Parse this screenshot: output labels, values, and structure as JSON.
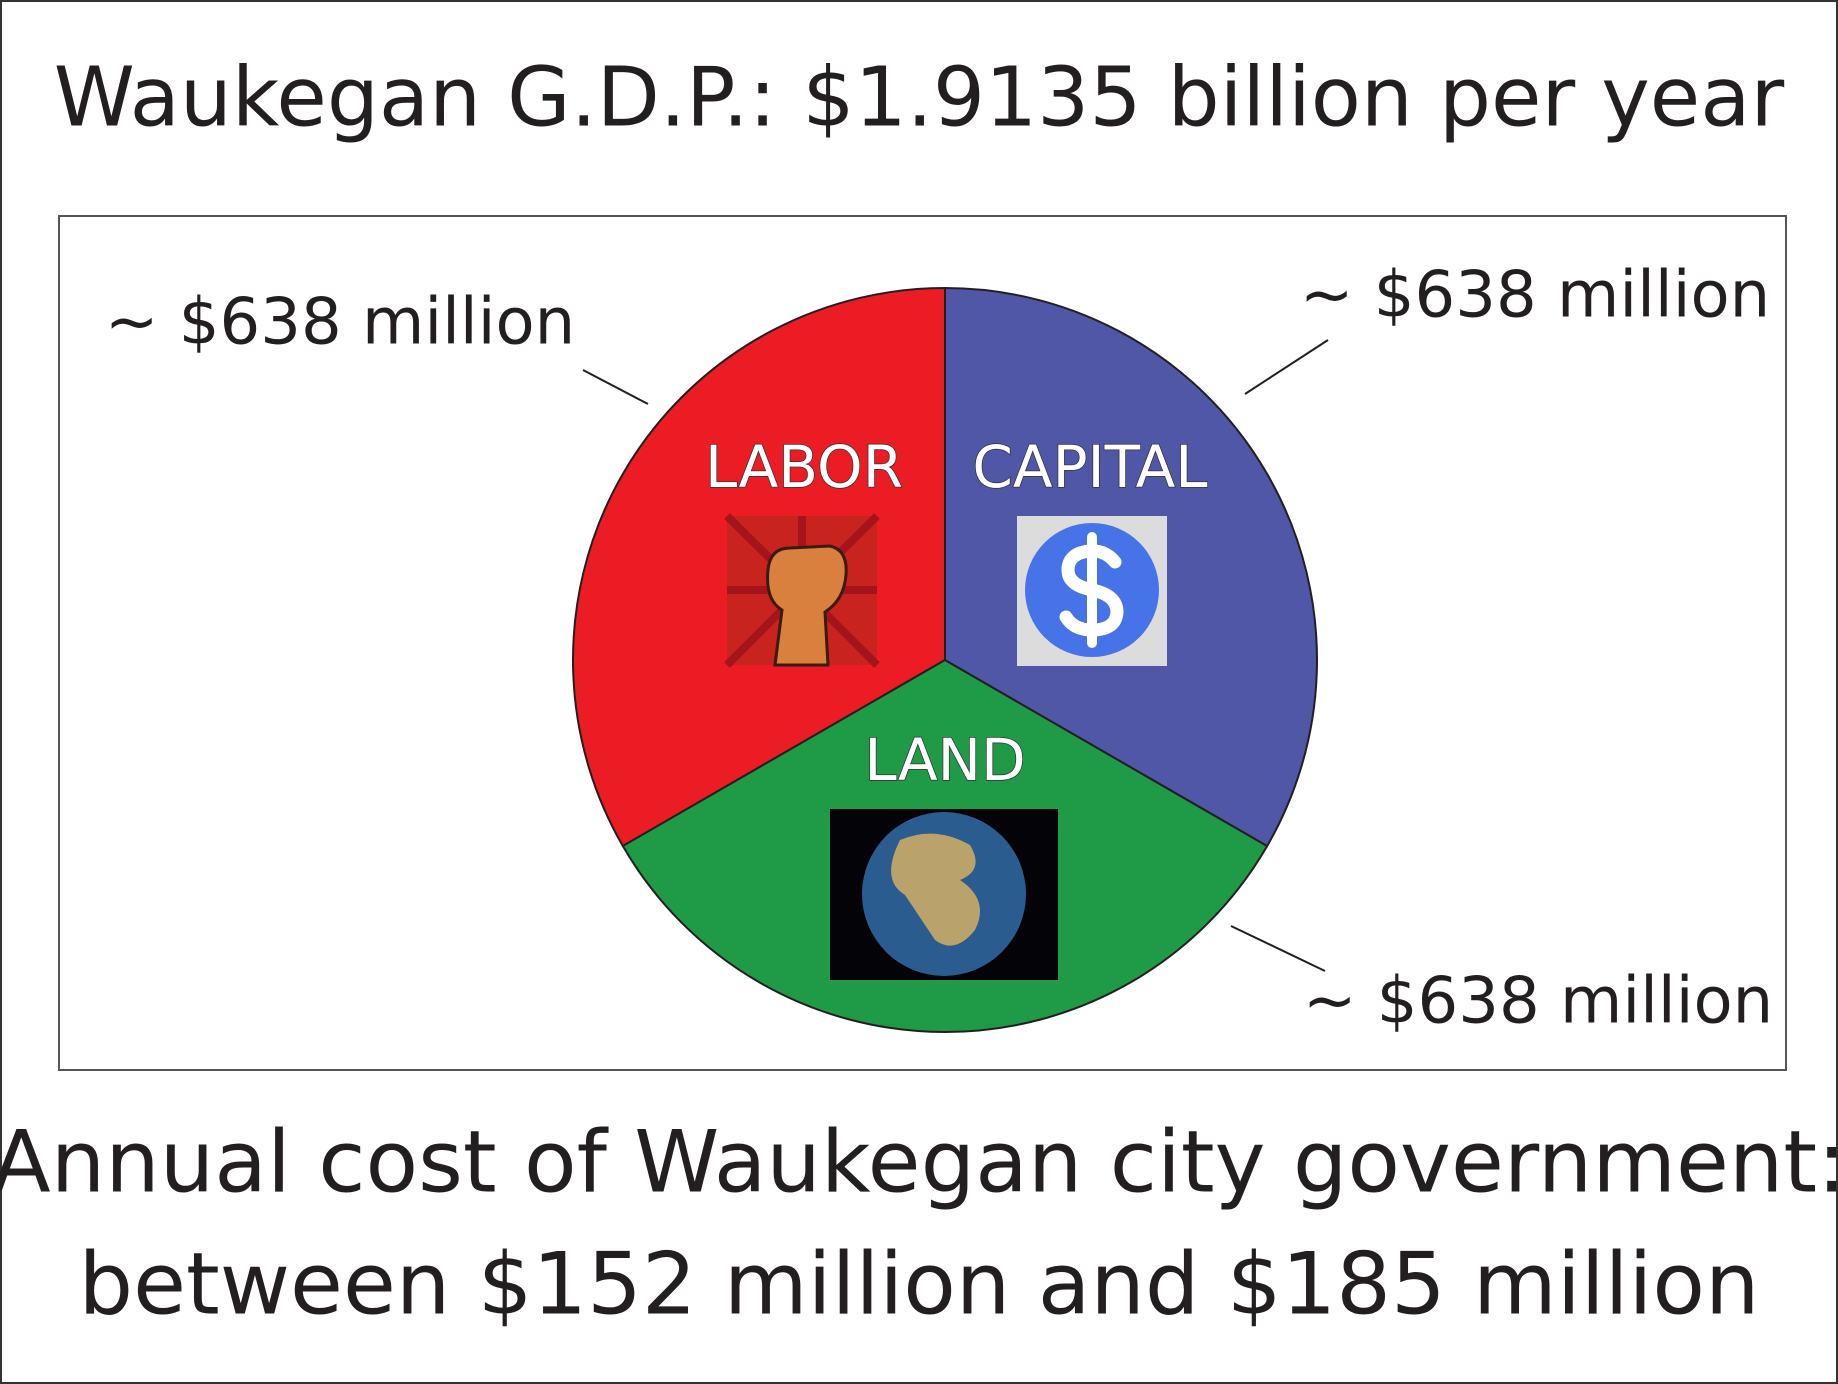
{
  "chart_data": {
    "type": "pie",
    "title": "Waukegan G.D.P.: $1.9135 billion per year",
    "categories": [
      "LABOR",
      "LAND",
      "CAPITAL"
    ],
    "values": [
      638,
      638,
      638
    ],
    "value_labels": [
      "~ $638 million",
      "~ $638 million",
      "~ $638 million"
    ],
    "colors": [
      "#ec1c24",
      "#1f9b48",
      "#5057a7"
    ],
    "annotations": [
      "Annual cost of Waukegan city government:",
      "between $152 million and $185 million"
    ]
  }
}
